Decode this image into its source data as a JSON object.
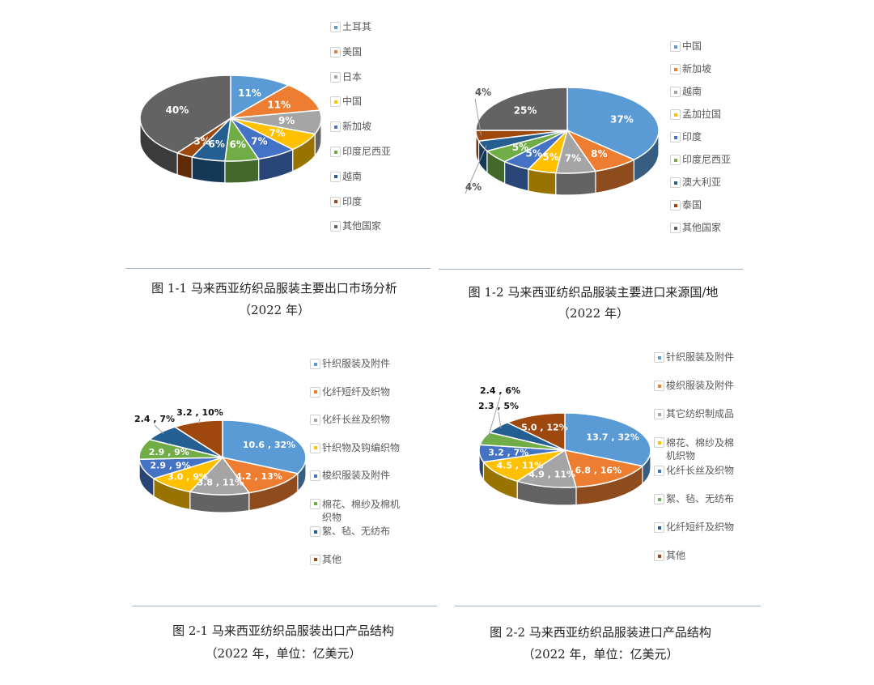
{
  "chart_data": [
    {
      "type": "pie",
      "style": "3d",
      "title": "图 1-1 马来西亚纺织品服装主要出口市场分析",
      "subtitle": "（2022 年）",
      "categories": [
        "土耳其",
        "美国",
        "日本",
        "中国",
        "新加坡",
        "印度尼西亚",
        "越南",
        "印度",
        "其他国家"
      ],
      "values": [
        11,
        11,
        9,
        7,
        7,
        6,
        6,
        3,
        40
      ],
      "labels": [
        "11%",
        "11%",
        "9%",
        "7%",
        "7%",
        "6%",
        "6%",
        "3%",
        "40%"
      ],
      "colors": [
        "#5b9bd5",
        "#ed7d31",
        "#a5a5a5",
        "#ffc000",
        "#4472c4",
        "#70ad47",
        "#255e91",
        "#9e480e",
        "#636363"
      ],
      "legend": "right"
    },
    {
      "type": "pie",
      "style": "3d",
      "title": "图 1-2  马来西亚纺织品服装主要进口来源国/地",
      "subtitle": "（2022 年）",
      "categories": [
        "中国",
        "新加坡",
        "越南",
        "孟加拉国",
        "印度",
        "印度尼西亚",
        "澳大利亚",
        "泰国",
        "其他国家"
      ],
      "values": [
        37,
        8,
        7,
        5,
        5,
        5,
        4,
        4,
        25
      ],
      "labels": [
        "37%",
        "8%",
        "7%",
        "5%",
        "5%",
        "5%",
        "4%",
        "4%",
        "25%"
      ],
      "colors": [
        "#5b9bd5",
        "#ed7d31",
        "#a5a5a5",
        "#ffc000",
        "#4472c4",
        "#70ad47",
        "#255e91",
        "#9e480e",
        "#636363"
      ],
      "legend": "right"
    },
    {
      "type": "pie",
      "style": "3d",
      "title": "图 2-1  马来西亚纺织品服装出口产品结构",
      "subtitle": "（2022 年，单位：亿美元）",
      "unit": "亿美元",
      "categories": [
        "针织服装及附件",
        "化纤短纤及织物",
        "化纤长丝及织物",
        "针织物及钩编织物",
        "梭织服装及附件",
        "棉花、棉纱及棉机织物",
        "絮、毡、无纺布",
        "其他"
      ],
      "values": [
        10.6,
        4.2,
        3.8,
        3.0,
        2.9,
        2.9,
        2.4,
        3.2
      ],
      "percents": [
        32,
        13,
        11,
        9,
        9,
        9,
        7,
        10
      ],
      "labels": [
        "10.6 , 32%",
        "4.2 , 13%",
        "3.8 , 11%",
        "3.0 , 9%",
        "2.9 , 9%",
        "2.9 , 9%",
        "2.4 , 7%",
        "3.2 , 10%"
      ],
      "colors": [
        "#5b9bd5",
        "#ed7d31",
        "#a5a5a5",
        "#ffc000",
        "#4472c4",
        "#70ad47",
        "#255e91",
        "#9e480e"
      ],
      "legend": "right"
    },
    {
      "type": "pie",
      "style": "3d",
      "title": "图 2-2  马来西亚纺织品服装进口产品结构",
      "subtitle": "（2022 年，单位：亿美元）",
      "unit": "亿美元",
      "categories": [
        "针织服装及附件",
        "梭织服装及附件",
        "其它纺织制成品",
        "棉花、棉纱及棉机织物",
        "化纤长丝及织物",
        "絮、毡、无纺布",
        "化纤短纤及织物",
        "其他"
      ],
      "values": [
        13.7,
        6.8,
        4.9,
        4.5,
        3.2,
        2.4,
        2.3,
        5.0
      ],
      "percents": [
        32,
        16,
        11,
        11,
        7,
        6,
        5,
        12
      ],
      "labels": [
        "13.7 , 32%",
        "6.8 , 16%",
        "4.9 , 11%",
        "4.5 , 11%",
        "3.2 , 7%",
        "2.4 , 6%",
        "2.3 , 5%",
        "5.0 , 12%"
      ],
      "colors": [
        "#5b9bd5",
        "#ed7d31",
        "#a5a5a5",
        "#ffc000",
        "#4472c4",
        "#70ad47",
        "#255e91",
        "#9e480e"
      ],
      "legend": "right"
    }
  ]
}
